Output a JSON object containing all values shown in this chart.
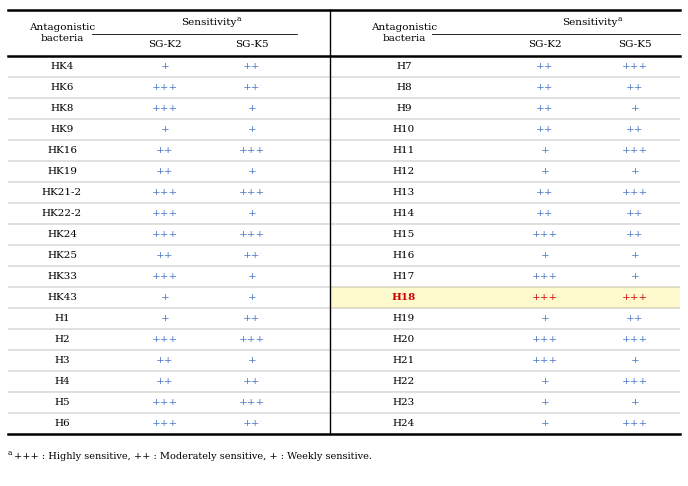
{
  "left_bacteria": [
    "HK4",
    "HK6",
    "HK8",
    "HK9",
    "HK16",
    "HK19",
    "HK21-2",
    "HK22-2",
    "HK24",
    "HK25",
    "HK33",
    "HK43",
    "H1",
    "H2",
    "H3",
    "H4",
    "H5",
    "H6"
  ],
  "left_sgk2": [
    "+",
    "+++",
    "+++",
    "+",
    "++",
    "++",
    "+++",
    "+++",
    "+++",
    "++",
    "+++",
    "+",
    "+",
    "+++",
    "++",
    "++",
    "+++",
    "+++"
  ],
  "left_sgk5": [
    "++",
    "++",
    "+",
    "+",
    "+++",
    "+",
    "+++",
    "+",
    "+++",
    "++",
    "+",
    "+",
    "++",
    "+++",
    "+",
    "++",
    "+++",
    "++"
  ],
  "right_bacteria": [
    "H7",
    "H8",
    "H9",
    "H10",
    "H11",
    "H12",
    "H13",
    "H14",
    "H15",
    "H16",
    "H17",
    "H18",
    "H19",
    "H20",
    "H21",
    "H22",
    "H23",
    "H24"
  ],
  "right_sgk2": [
    "++",
    "++",
    "++",
    "++",
    "+",
    "+",
    "++",
    "++",
    "+++",
    "+",
    "+++",
    "+++",
    "+",
    "+++",
    "+++",
    "+",
    "+",
    "+"
  ],
  "right_sgk5": [
    "+++",
    "++",
    "+",
    "++",
    "+++",
    "+",
    "+++",
    "++",
    "++",
    "+",
    "+",
    "+++",
    "++",
    "+++",
    "+",
    "+++",
    "+",
    "+++"
  ],
  "highlight_row": "H18",
  "highlight_color": "#FFFACD",
  "highlight_red_color": "#CC0000",
  "plus_color": "#4472C4",
  "bacteria_color": "#000000",
  "header_color": "#000000",
  "footnote_super": "a",
  "footnote_rest": "+++ : Highly sensitive, ++ : Moderately sensitive, + : Weekly sensitive.",
  "col_header_bact": "Antagonistic\nbacteria",
  "col_header_sens": "Sensitivity",
  "col_header_sens_super": "a",
  "col_header_sgk2": "SG-K2",
  "col_header_sgk5": "SG-K5"
}
